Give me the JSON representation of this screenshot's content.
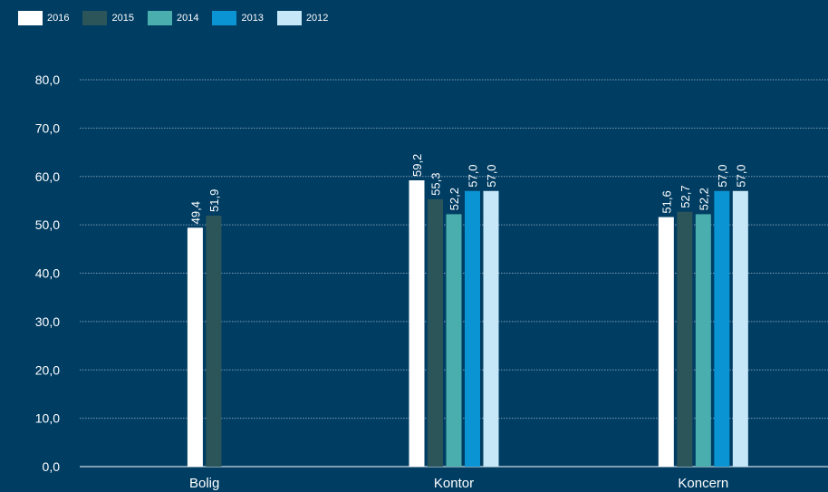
{
  "chart_data": {
    "type": "bar",
    "categories": [
      "Bolig",
      "Kontor",
      "Koncern"
    ],
    "series": [
      {
        "name": "2016",
        "color": "#ffffff",
        "values": [
          49.4,
          59.2,
          51.6
        ],
        "labels": [
          "49,4",
          "59,2",
          "51,6"
        ]
      },
      {
        "name": "2015",
        "color": "#2b5559",
        "values": [
          51.9,
          55.3,
          52.7
        ],
        "labels": [
          "51,9",
          "55,3",
          "52,7"
        ]
      },
      {
        "name": "2014",
        "color": "#4aaeae",
        "values": [
          null,
          52.2,
          52.2
        ],
        "labels": [
          null,
          "52,2",
          "52,2"
        ]
      },
      {
        "name": "2013",
        "color": "#0a94d4",
        "values": [
          null,
          57.0,
          57.0
        ],
        "labels": [
          null,
          "57,0",
          "57,0"
        ]
      },
      {
        "name": "2012",
        "color": "#c6e7f7",
        "values": [
          null,
          57.0,
          57.0
        ],
        "labels": [
          null,
          "57,0",
          "57,0"
        ]
      }
    ],
    "y_ticks": [
      0,
      10,
      20,
      30,
      40,
      50,
      60,
      70,
      80
    ],
    "y_tick_labels": [
      "0,0",
      "10,0",
      "20,0",
      "30,0",
      "40,0",
      "50,0",
      "60,0",
      "70,0",
      "80,0"
    ],
    "ylim": [
      0,
      80
    ],
    "title": "",
    "xlabel": "",
    "ylabel": "",
    "grid": true,
    "legend_position": "top-left"
  }
}
